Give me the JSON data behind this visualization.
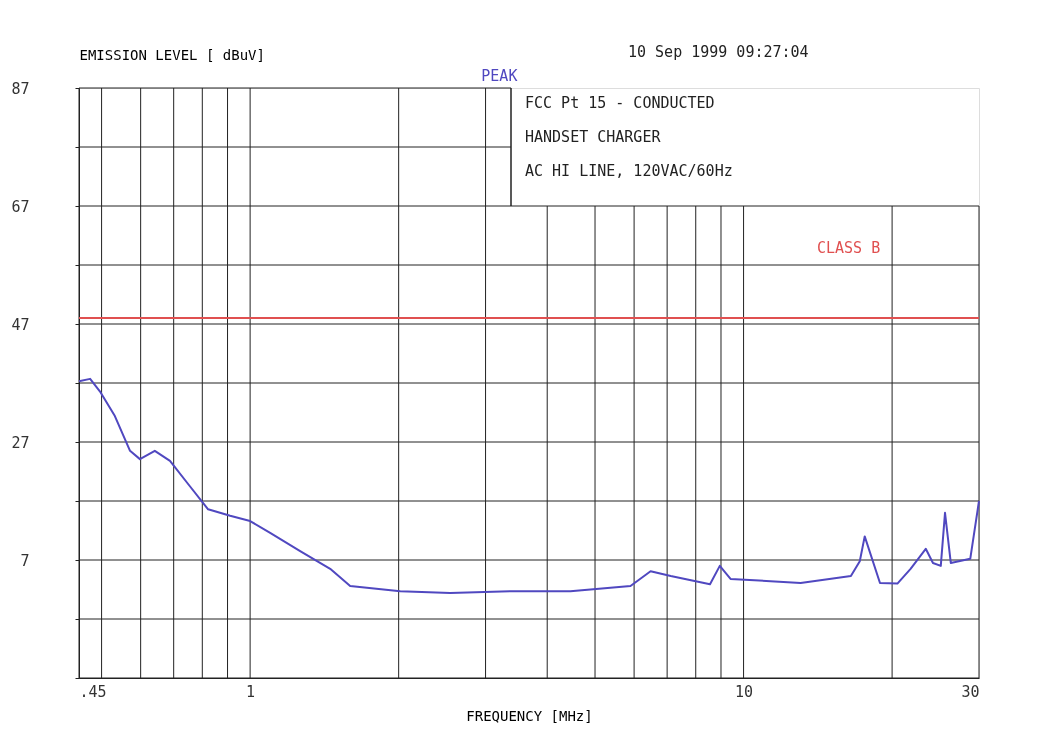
{
  "chart_data": {
    "type": "line",
    "xlabel": "FREQUENCY [MHz]",
    "ylabel": "EMISSION LEVEL [ dBuV]",
    "annotations": [
      "10 Sep 1999   09:27:04",
      "FCC Pt 15  - CONDUCTED",
      "HANDSET CHARGER",
      "AC HI LINE,        120VAC/60Hz"
    ],
    "log": "x",
    "grid": true,
    "xlim": [
      0.45,
      30
    ],
    "ylim": [
      -13,
      87
    ],
    "xticks": [
      {
        "value": 0.45,
        "label": ".45"
      },
      {
        "value": 0.5,
        "label": null
      },
      {
        "value": 0.6,
        "label": null
      },
      {
        "value": 0.7,
        "label": null
      },
      {
        "value": 0.8,
        "label": null
      },
      {
        "value": 0.9,
        "label": null
      },
      1,
      {
        "value": 2,
        "label": null
      },
      {
        "value": 3,
        "label": null
      },
      {
        "value": 4,
        "label": null
      },
      {
        "value": 5,
        "label": null
      },
      {
        "value": 6,
        "label": null
      },
      {
        "value": 7,
        "label": null
      },
      {
        "value": 8,
        "label": null
      },
      {
        "value": 9,
        "label": null
      },
      10,
      {
        "value": 20,
        "label": null
      },
      30
    ],
    "yticks": [
      {
        "value": -13,
        "label": null
      },
      {
        "value": -3,
        "label": null
      },
      7,
      {
        "value": 17,
        "label": null
      },
      27,
      {
        "value": 37,
        "label": null
      },
      47,
      {
        "value": 57,
        "label": null
      },
      67,
      {
        "value": 77,
        "label": null
      },
      87
    ],
    "ref_lines": [
      {
        "axis": "y",
        "value": 48,
        "label": "CLASS B",
        "color": "#e05050"
      }
    ],
    "series": [
      {
        "name": "PEAK",
        "color": "#5048c0",
        "x": [
          0.45,
          0.474,
          0.496,
          0.532,
          0.571,
          0.598,
          0.641,
          0.688,
          0.755,
          0.822,
          0.911,
          1.0,
          1.098,
          1.263,
          1.453,
          1.595,
          2.015,
          2.544,
          3.367,
          4.457,
          5.9,
          6.48,
          7.12,
          8.55,
          8.95,
          9.41,
          13.05,
          16.5,
          17.2,
          17.6,
          18.9,
          20.5,
          21.8,
          23.4,
          24.2,
          25.1,
          25.6,
          26.3,
          28.8,
          30
        ],
        "values": [
          37.3,
          37.7,
          35.6,
          31.4,
          25.5,
          24.1,
          25.5,
          23.8,
          19.5,
          15.6,
          14.5,
          13.6,
          11.6,
          8.5,
          5.5,
          2.6,
          1.7,
          1.4,
          1.7,
          1.7,
          2.6,
          5.1,
          4.3,
          2.9,
          6.0,
          3.8,
          3.1,
          4.3,
          6.8,
          11.0,
          3.1,
          3.0,
          5.5,
          8.9,
          6.5,
          6.0,
          15.0,
          6.5,
          7.2,
          17.0
        ]
      }
    ]
  }
}
